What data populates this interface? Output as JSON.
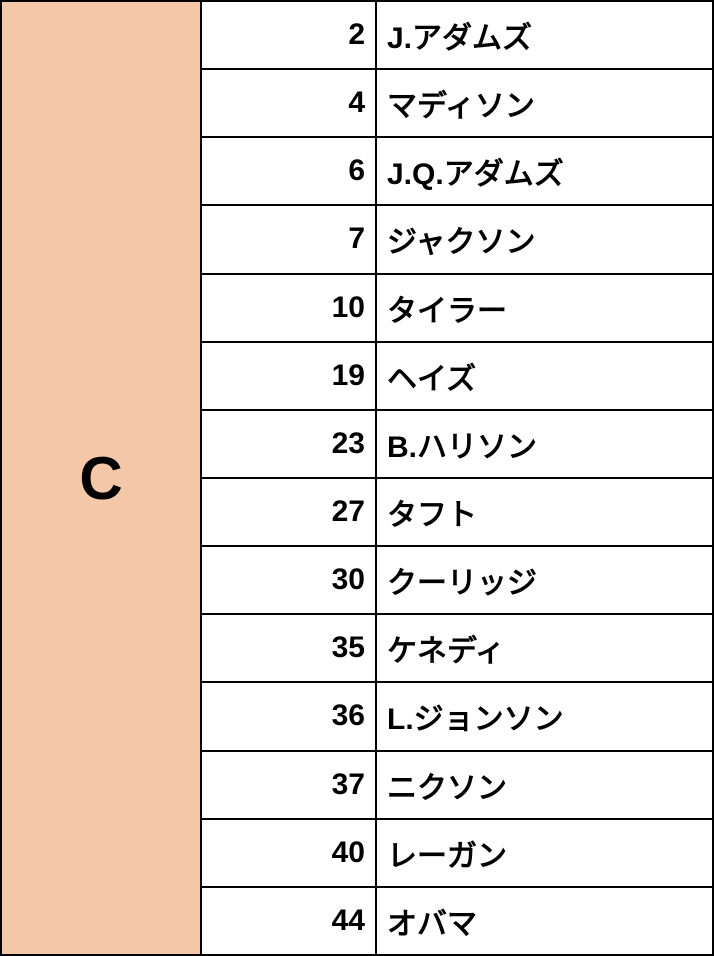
{
  "table": {
    "category_label": "C",
    "category_bg_color": "#f4c7a8",
    "border_color": "#000000",
    "text_color": "#000000",
    "category_fontsize": 60,
    "cell_fontsize": 30,
    "rows": [
      {
        "number": "2",
        "name": "J.アダムズ"
      },
      {
        "number": "4",
        "name": "マディソン"
      },
      {
        "number": "6",
        "name": "J.Q.アダムズ"
      },
      {
        "number": "7",
        "name": "ジャクソン"
      },
      {
        "number": "10",
        "name": "タイラー"
      },
      {
        "number": "19",
        "name": "ヘイズ"
      },
      {
        "number": "23",
        "name": "B.ハリソン"
      },
      {
        "number": "27",
        "name": "タフト"
      },
      {
        "number": "30",
        "name": "クーリッジ"
      },
      {
        "number": "35",
        "name": "ケネディ"
      },
      {
        "number": "36",
        "name": "L.ジョンソン"
      },
      {
        "number": "37",
        "name": "ニクソン"
      },
      {
        "number": "40",
        "name": "レーガン"
      },
      {
        "number": "44",
        "name": "オバマ"
      }
    ]
  }
}
